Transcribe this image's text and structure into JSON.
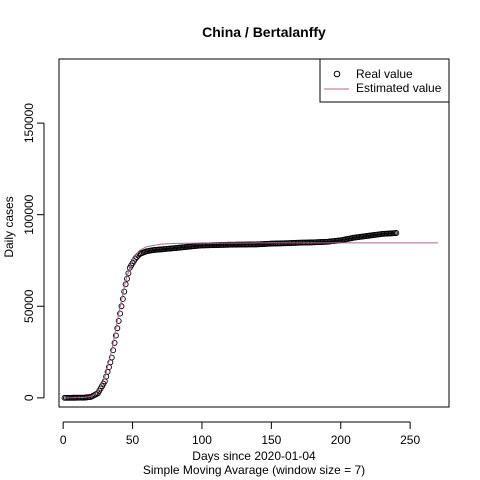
{
  "chart_data": {
    "type": "line",
    "title": "China / Bertalanffy",
    "xlabel": "Days since 2020-01-04",
    "subtitle": "Simple Moving Avarage (window size = 7)",
    "ylabel": "Daily cases",
    "xlim": [
      -3,
      278
    ],
    "ylim": [
      -5000,
      185000
    ],
    "x_ticks": [
      "0",
      "50",
      "100",
      "150",
      "200",
      "250"
    ],
    "y_ticks": [
      "0",
      "50000",
      "100000",
      "150000"
    ],
    "legend": {
      "position": "top-right",
      "entries": [
        {
          "label": "Real value",
          "marker": "circle",
          "color": "#000000"
        },
        {
          "label": "Estimated value",
          "marker": "line",
          "color": "#b3648f"
        }
      ]
    },
    "series": [
      {
        "name": "Real value",
        "style": "points",
        "x_range": [
          1,
          240
        ],
        "points": [
          [
            1,
            0
          ],
          [
            15,
            100
          ],
          [
            20,
            500
          ],
          [
            25,
            2500
          ],
          [
            30,
            9000
          ],
          [
            35,
            22000
          ],
          [
            40,
            42000
          ],
          [
            45,
            62000
          ],
          [
            48,
            71000
          ],
          [
            52,
            76000
          ],
          [
            55,
            78500
          ],
          [
            60,
            80000
          ],
          [
            65,
            80700
          ],
          [
            70,
            81000
          ],
          [
            80,
            81700
          ],
          [
            90,
            82500
          ],
          [
            100,
            83200
          ],
          [
            110,
            83400
          ],
          [
            120,
            83600
          ],
          [
            130,
            83700
          ],
          [
            140,
            83800
          ],
          [
            150,
            84200
          ],
          [
            160,
            84400
          ],
          [
            170,
            84700
          ],
          [
            180,
            84900
          ],
          [
            190,
            85200
          ],
          [
            200,
            86000
          ],
          [
            210,
            87500
          ],
          [
            220,
            88500
          ],
          [
            230,
            89500
          ],
          [
            240,
            90000
          ]
        ]
      },
      {
        "name": "Estimated value",
        "style": "line",
        "color": "#b3648f",
        "x_range": [
          1,
          270
        ],
        "points": [
          [
            1,
            0
          ],
          [
            15,
            200
          ],
          [
            20,
            800
          ],
          [
            25,
            3500
          ],
          [
            30,
            11000
          ],
          [
            35,
            26000
          ],
          [
            40,
            46000
          ],
          [
            45,
            64000
          ],
          [
            50,
            75500
          ],
          [
            55,
            80500
          ],
          [
            60,
            82500
          ],
          [
            70,
            83900
          ],
          [
            80,
            84300
          ],
          [
            100,
            84500
          ],
          [
            150,
            84600
          ],
          [
            200,
            84600
          ],
          [
            270,
            84600
          ]
        ]
      }
    ]
  }
}
